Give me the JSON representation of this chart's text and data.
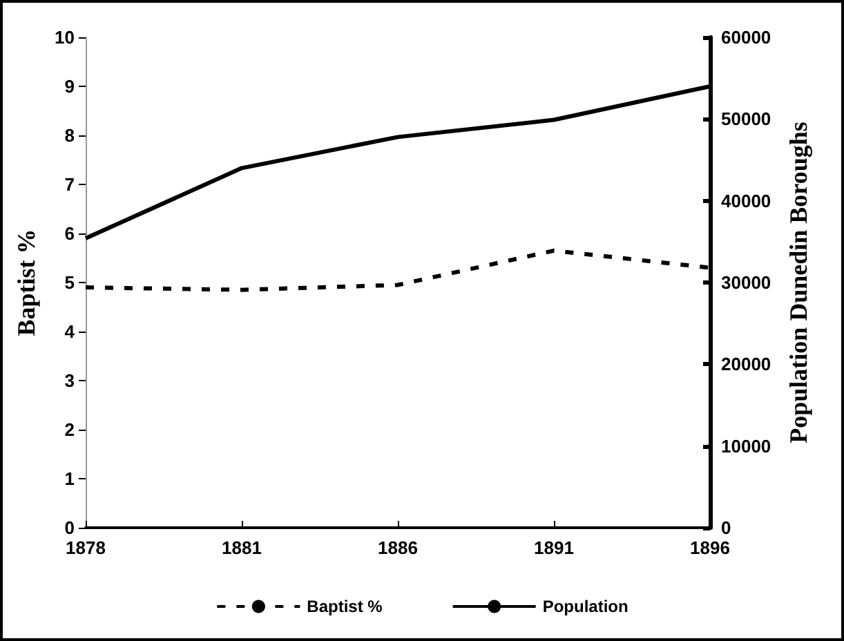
{
  "chart_data": {
    "type": "line",
    "ylabel": "Baptist %",
    "y2label": "Population Dunedin Boroughs",
    "categories": [
      "1878",
      "1881",
      "1886",
      "1891",
      "1896"
    ],
    "series": [
      {
        "name": "Baptist %",
        "color": "#000000",
        "line_style": "dashed",
        "values": [
          4.9,
          4.85,
          4.95,
          5.65,
          5.3
        ]
      },
      {
        "name": "Population",
        "color": "#000000",
        "line_style": "solid",
        "axis": "y2",
        "values": [
          35400,
          44000,
          47800,
          49900,
          54000
        ]
      }
    ],
    "ylim": [
      0,
      10
    ],
    "yticks": [
      0,
      1,
      2,
      3,
      4,
      5,
      6,
      7,
      8,
      9,
      10
    ],
    "y2lim": [
      0,
      60000
    ],
    "y2ticks": [
      0,
      10000,
      20000,
      30000,
      40000,
      50000,
      60000
    ],
    "grid": false,
    "legend": "bottom",
    "marker": "none"
  }
}
